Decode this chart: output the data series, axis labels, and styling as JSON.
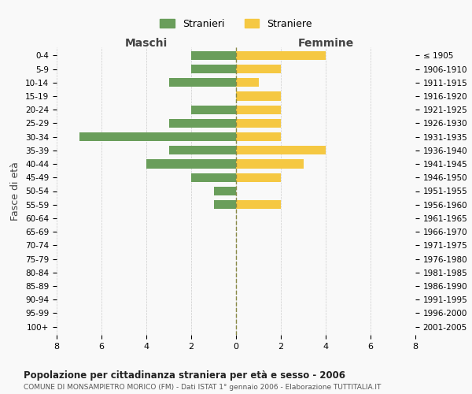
{
  "age_groups": [
    "0-4",
    "5-9",
    "10-14",
    "15-19",
    "20-24",
    "25-29",
    "30-34",
    "35-39",
    "40-44",
    "45-49",
    "50-54",
    "55-59",
    "60-64",
    "65-69",
    "70-74",
    "75-79",
    "80-84",
    "85-89",
    "90-94",
    "95-99",
    "100+"
  ],
  "birth_years": [
    "2001-2005",
    "1996-2000",
    "1991-1995",
    "1986-1990",
    "1981-1985",
    "1976-1980",
    "1971-1975",
    "1966-1970",
    "1961-1965",
    "1956-1960",
    "1951-1955",
    "1946-1950",
    "1941-1945",
    "1936-1940",
    "1931-1935",
    "1926-1930",
    "1921-1925",
    "1916-1920",
    "1911-1915",
    "1906-1910",
    "≤ 1905"
  ],
  "males": [
    2,
    2,
    3,
    0,
    2,
    3,
    7,
    3,
    4,
    2,
    1,
    1,
    0,
    0,
    0,
    0,
    0,
    0,
    0,
    0,
    0
  ],
  "females": [
    4,
    2,
    1,
    2,
    2,
    2,
    2,
    4,
    3,
    2,
    0,
    2,
    0,
    0,
    0,
    0,
    0,
    0,
    0,
    0,
    0
  ],
  "male_color": "#6a9e5b",
  "female_color": "#f5c842",
  "title_main": "Popolazione per cittadinanza straniera per età e sesso - 2006",
  "title_sub": "COMUNE DI MONSAMPIETRO MORICO (FM) - Dati ISTAT 1° gennaio 2006 - Elaborazione TUTTITALIA.IT",
  "xlabel_left": "Maschi",
  "xlabel_right": "Femmine",
  "ylabel_left": "Fasce di età",
  "legend_male": "Stranieri",
  "legend_female": "Straniere",
  "xlim": 8,
  "background_color": "#f9f9f9",
  "grid_color": "#cccccc"
}
